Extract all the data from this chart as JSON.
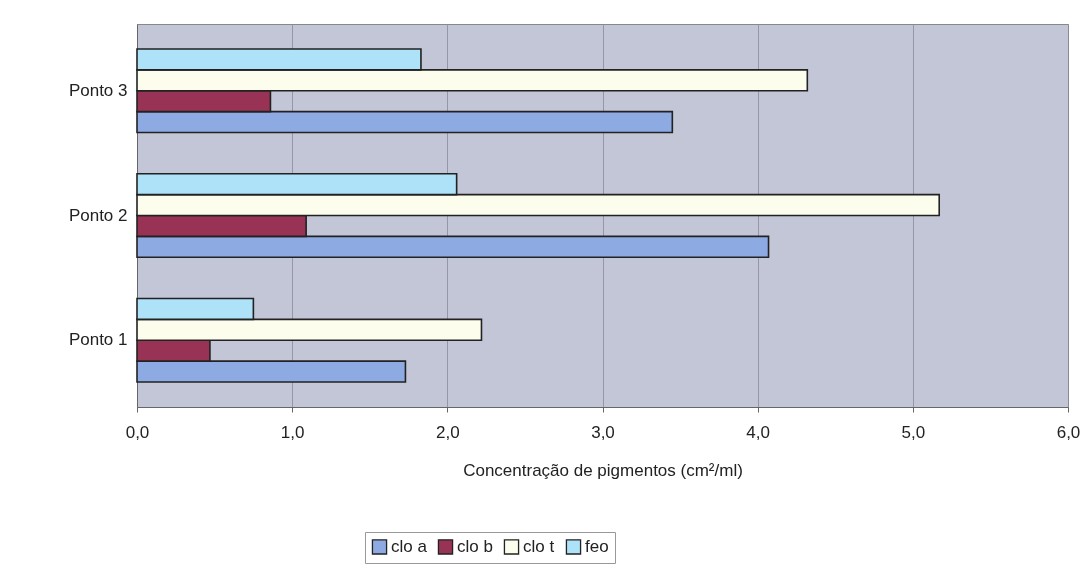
{
  "chart_data": {
    "type": "bar",
    "orientation": "horizontal",
    "categories": [
      "Ponto 3",
      "Ponto 2",
      "Ponto 1"
    ],
    "xlabel": "Concentração de pigmentos (cm²/ml)",
    "series": [
      {
        "name": "clo a",
        "color": "#8eaae2",
        "values": [
          3.45,
          4.07,
          1.73
        ]
      },
      {
        "name": "clo b",
        "color": "#993355",
        "values": [
          0.86,
          1.09,
          0.47
        ]
      },
      {
        "name": "clo t",
        "color": "#fdfdee",
        "values": [
          4.32,
          5.17,
          2.22
        ]
      },
      {
        "name": "feo",
        "color": "#aee2f8",
        "values": [
          1.83,
          2.06,
          0.75
        ]
      }
    ],
    "xlim": [
      0,
      6
    ],
    "xticks": [
      {
        "value": 0,
        "label": "0,0"
      },
      {
        "value": 1,
        "label": "1,0"
      },
      {
        "value": 2,
        "label": "2,0"
      },
      {
        "value": 3,
        "label": "3,0"
      },
      {
        "value": 4,
        "label": "4,0"
      },
      {
        "value": 5,
        "label": "5,0"
      },
      {
        "value": 6,
        "label": "6,0"
      }
    ],
    "grid": "x",
    "legend": "bottom"
  }
}
